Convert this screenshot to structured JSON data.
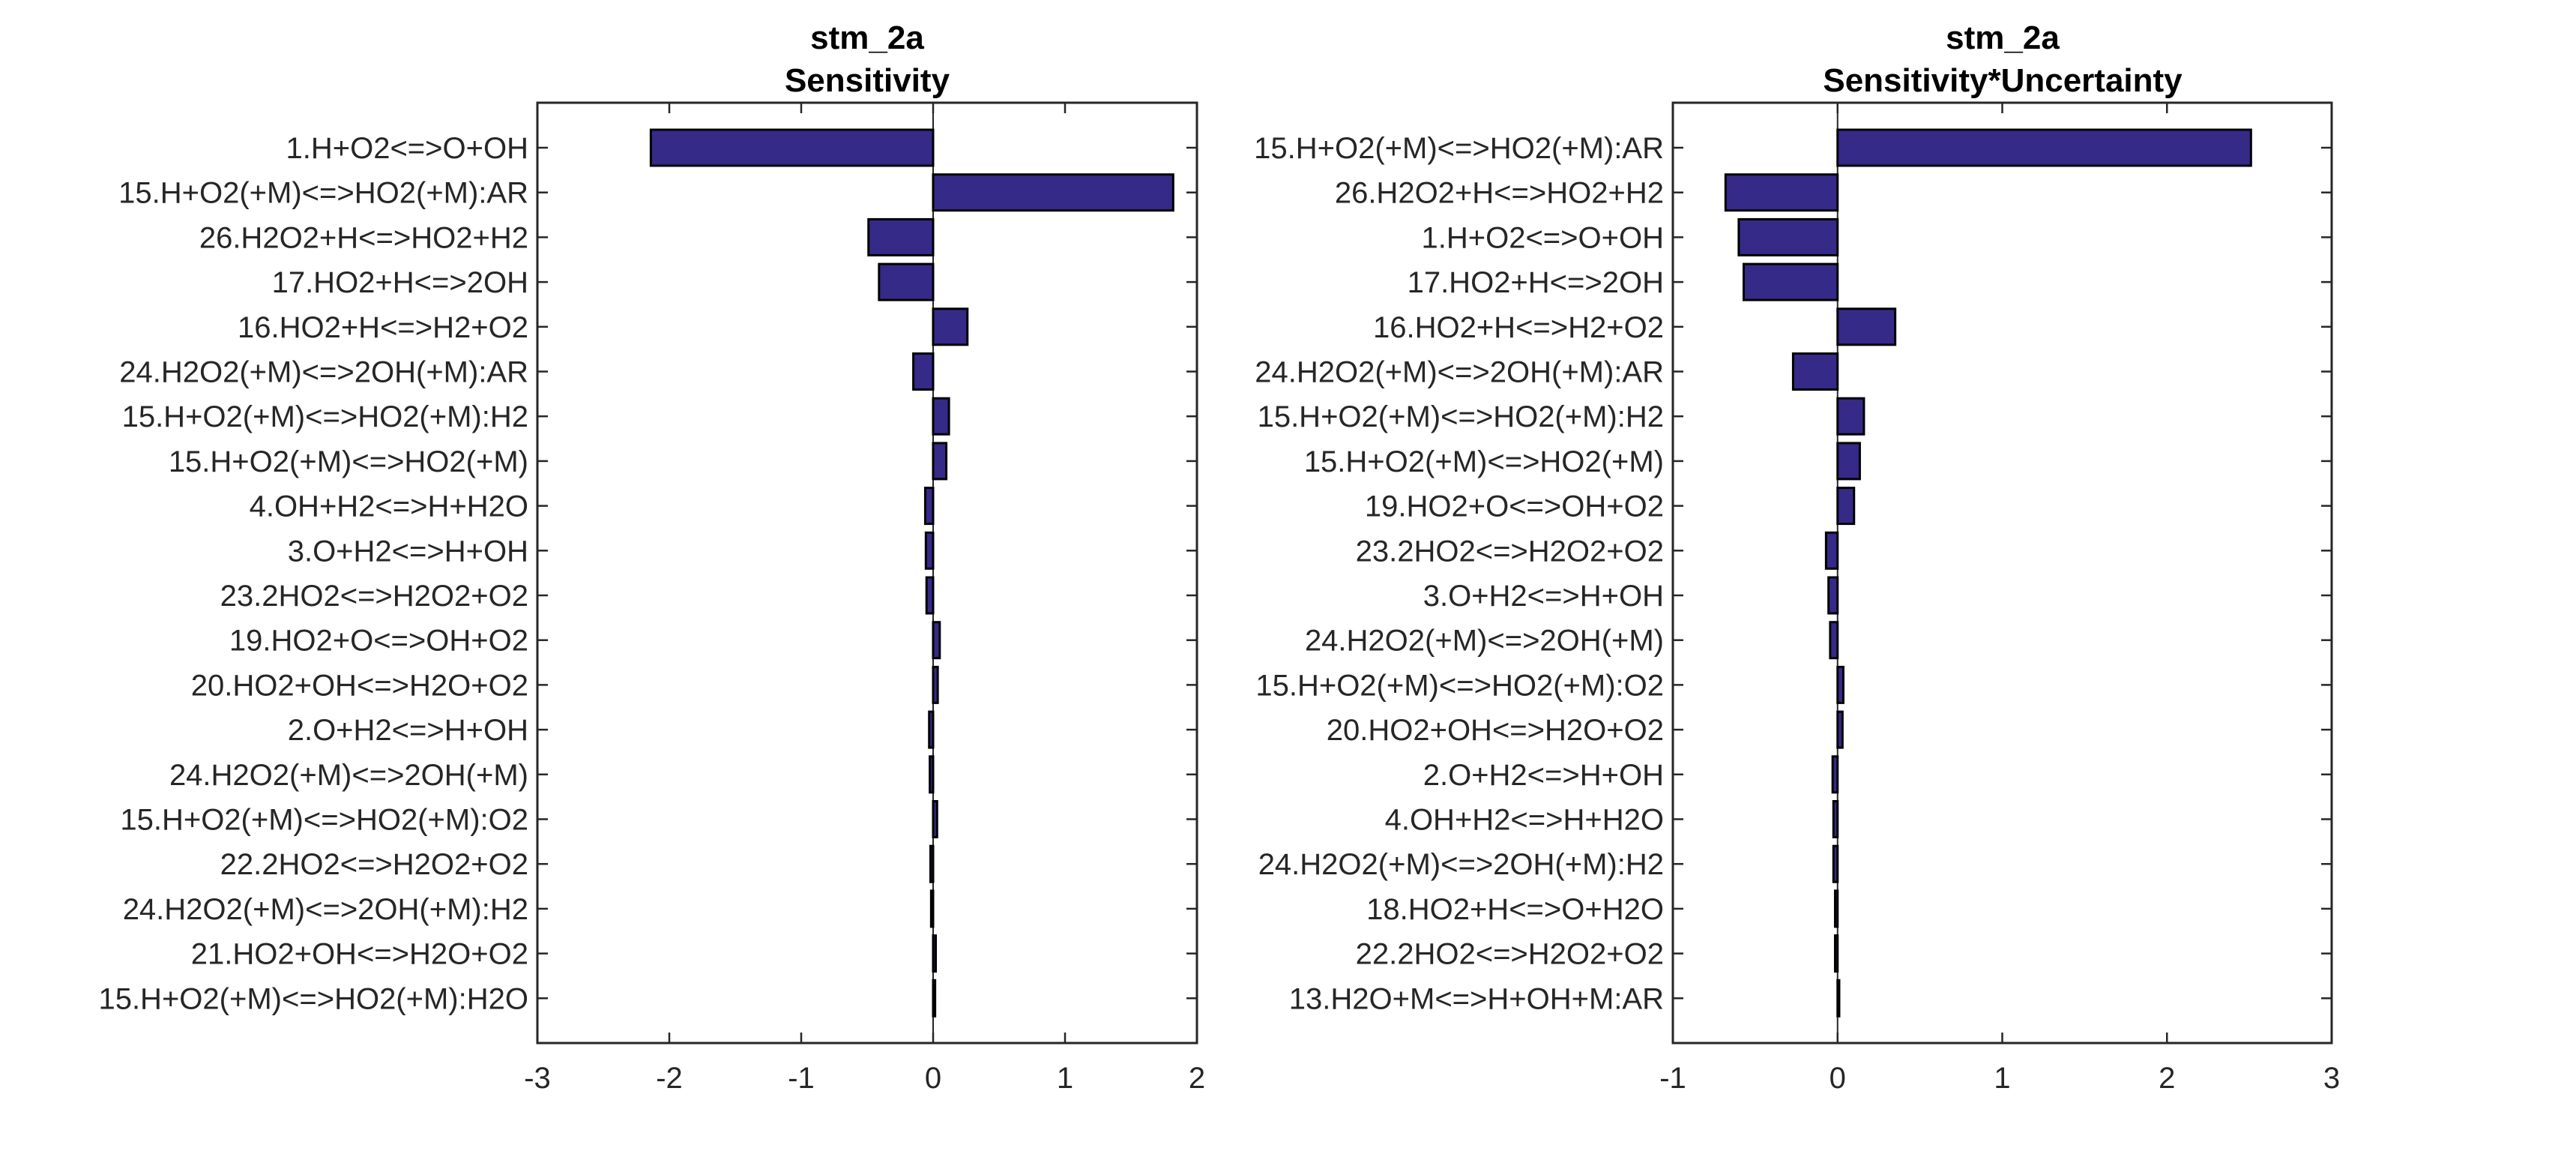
{
  "colors": {
    "bar_fill": "#352A87",
    "bar_edge": "#000000",
    "axis": "#262626",
    "background": "#FFFFFF"
  },
  "chart_data": [
    {
      "type": "bar",
      "orientation": "horizontal",
      "title": [
        "stm_2a",
        "Sensitivity"
      ],
      "xlabel": "",
      "ylabel": "",
      "xlim": [
        -3,
        2
      ],
      "xticks": [
        -3,
        -2,
        -1,
        0,
        1,
        2
      ],
      "xtick_labels": [
        "-3",
        "-2",
        "-1",
        "0",
        "1",
        "2"
      ],
      "grid": false,
      "categories": [
        "1.H+O2<=>O+OH",
        "15.H+O2(+M)<=>HO2(+M):AR",
        "26.H2O2+H<=>HO2+H2",
        "17.HO2+H<=>2OH",
        "16.HO2+H<=>H2+O2",
        "24.H2O2(+M)<=>2OH(+M):AR",
        "15.H+O2(+M)<=>HO2(+M):H2",
        "15.H+O2(+M)<=>HO2(+M)",
        "4.OH+H2<=>H+H2O",
        "3.O+H2<=>H+OH",
        "23.2HO2<=>H2O2+O2",
        "19.HO2+O<=>OH+O2",
        "20.HO2+OH<=>H2O+O2",
        "2.O+H2<=>H+OH",
        "24.H2O2(+M)<=>2OH(+M)",
        "15.H+O2(+M)<=>HO2(+M):O2",
        "22.2HO2<=>H2O2+O2",
        "24.H2O2(+M)<=>2OH(+M):H2",
        "21.HO2+OH<=>H2O+O2",
        "15.H+O2(+M)<=>HO2(+M):H2O"
      ],
      "values": [
        -2.14,
        1.82,
        -0.49,
        -0.41,
        0.26,
        -0.15,
        0.12,
        0.1,
        -0.06,
        -0.055,
        -0.05,
        0.05,
        0.035,
        -0.03,
        -0.025,
        0.03,
        -0.02,
        -0.015,
        0.02,
        0.015
      ]
    },
    {
      "type": "bar",
      "orientation": "horizontal",
      "title": [
        "stm_2a",
        "Sensitivity*Uncertainty"
      ],
      "xlabel": "",
      "ylabel": "",
      "xlim": [
        -1,
        3
      ],
      "xticks": [
        -1,
        0,
        1,
        2,
        3
      ],
      "xtick_labels": [
        "-1",
        "0",
        "1",
        "2",
        "3"
      ],
      "grid": false,
      "categories": [
        "15.H+O2(+M)<=>HO2(+M):AR",
        "26.H2O2+H<=>HO2+H2",
        "1.H+O2<=>O+OH",
        "17.HO2+H<=>2OH",
        "16.HO2+H<=>H2+O2",
        "24.H2O2(+M)<=>2OH(+M):AR",
        "15.H+O2(+M)<=>HO2(+M):H2",
        "15.H+O2(+M)<=>HO2(+M)",
        "19.HO2+O<=>OH+O2",
        "23.2HO2<=>H2O2+O2",
        "3.O+H2<=>H+OH",
        "24.H2O2(+M)<=>2OH(+M)",
        "15.H+O2(+M)<=>HO2(+M):O2",
        "20.HO2+OH<=>H2O+O2",
        "2.O+H2<=>H+OH",
        "4.OH+H2<=>H+H2O",
        "24.H2O2(+M)<=>2OH(+M):H2",
        "18.HO2+H<=>O+H2O",
        "22.2HO2<=>H2O2+O2",
        "13.H2O+M<=>H+OH+M:AR"
      ],
      "values": [
        2.51,
        -0.68,
        -0.6,
        -0.57,
        0.35,
        -0.27,
        0.16,
        0.135,
        0.1,
        -0.07,
        -0.055,
        -0.045,
        0.035,
        0.03,
        -0.03,
        -0.025,
        -0.025,
        -0.015,
        -0.015,
        0.01
      ]
    }
  ]
}
